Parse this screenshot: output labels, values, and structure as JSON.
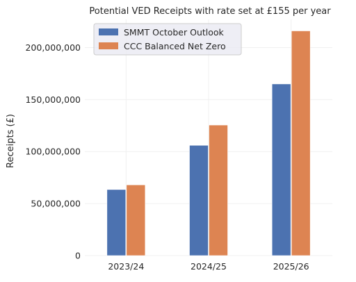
{
  "chart_data": {
    "type": "bar",
    "title": "Potential VED Receipts with rate set at £155 per year",
    "xlabel": "",
    "ylabel": "Receipts (£)",
    "categories": [
      "2023/24",
      "2024/25",
      "2025/26"
    ],
    "series": [
      {
        "name": "SMMT October Outlook",
        "color": "#4c72b0",
        "values": [
          63500000,
          106000000,
          165000000
        ]
      },
      {
        "name": "CCC Balanced Net Zero",
        "color": "#dd8452",
        "values": [
          68000000,
          125500000,
          216000000
        ]
      }
    ],
    "yticks": [
      0,
      50000000,
      100000000,
      150000000,
      200000000
    ],
    "ytick_labels": [
      "0",
      "50,000,000",
      "100,000,000",
      "150,000,000",
      "200,000,000"
    ],
    "ylim": [
      0,
      227000000
    ],
    "grid": true,
    "legend_position": "upper-left"
  }
}
